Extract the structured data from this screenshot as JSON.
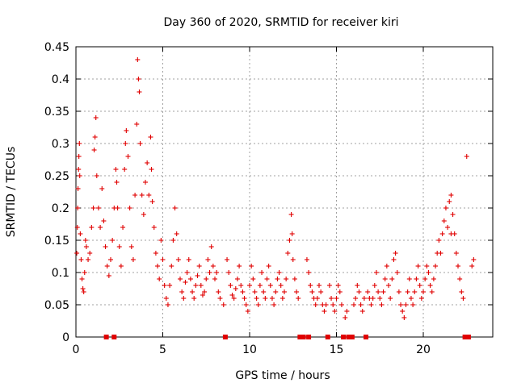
{
  "chart_data": {
    "type": "scatter",
    "title": "Day 360 of 2020, SRMTID for receiver kiri",
    "xlabel": "GPS time / hours",
    "ylabel": "SRMTID / TECUs",
    "xlim": [
      0,
      24
    ],
    "ylim": [
      0,
      0.45
    ],
    "x_ticks": [
      0,
      5,
      10,
      15,
      20
    ],
    "x_tick_labels": [
      "0",
      "5",
      "10",
      "15",
      "20"
    ],
    "y_ticks": [
      0,
      0.05,
      0.1,
      0.15,
      0.2,
      0.25,
      0.3,
      0.35,
      0.4,
      0.45
    ],
    "y_tick_labels": [
      "0",
      "0.05",
      "0.1",
      "0.15",
      "0.2",
      "0.25",
      "0.3",
      "0.35",
      "0.4",
      "0.45"
    ],
    "grid": true,
    "marker": "+",
    "color": "#e00000",
    "zero_markers_x": [
      1.75,
      2.2,
      8.6,
      12.9,
      13.1,
      13.4,
      14.5,
      15.4,
      15.7,
      15.9,
      16.7,
      22.4,
      22.6
    ],
    "series": [
      {
        "name": "SRMTID",
        "points": [
          [
            0.05,
            0.13
          ],
          [
            0.08,
            0.17
          ],
          [
            0.1,
            0.2
          ],
          [
            0.12,
            0.23
          ],
          [
            0.15,
            0.26
          ],
          [
            0.17,
            0.28
          ],
          [
            0.2,
            0.3
          ],
          [
            0.22,
            0.25
          ],
          [
            0.25,
            0.16
          ],
          [
            0.3,
            0.12
          ],
          [
            0.35,
            0.09
          ],
          [
            0.4,
            0.075
          ],
          [
            0.45,
            0.07
          ],
          [
            0.5,
            0.1
          ],
          [
            0.55,
            0.15
          ],
          [
            0.6,
            0.14
          ],
          [
            0.7,
            0.12
          ],
          [
            0.8,
            0.13
          ],
          [
            0.9,
            0.17
          ],
          [
            1.0,
            0.2
          ],
          [
            1.05,
            0.29
          ],
          [
            1.1,
            0.31
          ],
          [
            1.15,
            0.34
          ],
          [
            1.2,
            0.25
          ],
          [
            1.3,
            0.2
          ],
          [
            1.4,
            0.17
          ],
          [
            1.5,
            0.23
          ],
          [
            1.6,
            0.18
          ],
          [
            1.7,
            0.14
          ],
          [
            1.8,
            0.11
          ],
          [
            1.9,
            0.095
          ],
          [
            2.0,
            0.12
          ],
          [
            2.1,
            0.15
          ],
          [
            2.2,
            0.2
          ],
          [
            2.3,
            0.26
          ],
          [
            2.35,
            0.24
          ],
          [
            2.4,
            0.2
          ],
          [
            2.5,
            0.14
          ],
          [
            2.6,
            0.11
          ],
          [
            2.7,
            0.17
          ],
          [
            2.8,
            0.26
          ],
          [
            2.85,
            0.3
          ],
          [
            2.9,
            0.32
          ],
          [
            3.0,
            0.28
          ],
          [
            3.1,
            0.2
          ],
          [
            3.2,
            0.14
          ],
          [
            3.3,
            0.12
          ],
          [
            3.4,
            0.22
          ],
          [
            3.5,
            0.33
          ],
          [
            3.55,
            0.43
          ],
          [
            3.6,
            0.4
          ],
          [
            3.65,
            0.38
          ],
          [
            3.7,
            0.3
          ],
          [
            3.8,
            0.22
          ],
          [
            3.9,
            0.19
          ],
          [
            4.0,
            0.24
          ],
          [
            4.1,
            0.27
          ],
          [
            4.2,
            0.22
          ],
          [
            4.3,
            0.31
          ],
          [
            4.35,
            0.26
          ],
          [
            4.4,
            0.21
          ],
          [
            4.5,
            0.17
          ],
          [
            4.6,
            0.13
          ],
          [
            4.7,
            0.11
          ],
          [
            4.8,
            0.09
          ],
          [
            4.9,
            0.15
          ],
          [
            5.0,
            0.12
          ],
          [
            5.1,
            0.08
          ],
          [
            5.2,
            0.06
          ],
          [
            5.3,
            0.05
          ],
          [
            5.4,
            0.08
          ],
          [
            5.5,
            0.11
          ],
          [
            5.6,
            0.15
          ],
          [
            5.7,
            0.2
          ],
          [
            5.8,
            0.16
          ],
          [
            5.9,
            0.12
          ],
          [
            6.0,
            0.09
          ],
          [
            6.1,
            0.07
          ],
          [
            6.2,
            0.06
          ],
          [
            6.3,
            0.085
          ],
          [
            6.4,
            0.1
          ],
          [
            6.5,
            0.12
          ],
          [
            6.6,
            0.09
          ],
          [
            6.7,
            0.07
          ],
          [
            6.8,
            0.06
          ],
          [
            6.9,
            0.08
          ],
          [
            7.0,
            0.095
          ],
          [
            7.1,
            0.11
          ],
          [
            7.2,
            0.08
          ],
          [
            7.3,
            0.065
          ],
          [
            7.4,
            0.07
          ],
          [
            7.5,
            0.09
          ],
          [
            7.6,
            0.12
          ],
          [
            7.7,
            0.1
          ],
          [
            7.8,
            0.14
          ],
          [
            7.9,
            0.11
          ],
          [
            8.0,
            0.09
          ],
          [
            8.1,
            0.1
          ],
          [
            8.2,
            0.07
          ],
          [
            8.3,
            0.06
          ],
          [
            8.5,
            0.05
          ],
          [
            8.7,
            0.12
          ],
          [
            8.8,
            0.1
          ],
          [
            8.9,
            0.08
          ],
          [
            9.0,
            0.065
          ],
          [
            9.1,
            0.06
          ],
          [
            9.2,
            0.075
          ],
          [
            9.3,
            0.09
          ],
          [
            9.4,
            0.11
          ],
          [
            9.5,
            0.08
          ],
          [
            9.6,
            0.07
          ],
          [
            9.7,
            0.06
          ],
          [
            9.8,
            0.05
          ],
          [
            9.9,
            0.04
          ],
          [
            10.0,
            0.08
          ],
          [
            10.1,
            0.11
          ],
          [
            10.2,
            0.09
          ],
          [
            10.3,
            0.07
          ],
          [
            10.4,
            0.06
          ],
          [
            10.5,
            0.05
          ],
          [
            10.6,
            0.08
          ],
          [
            10.7,
            0.1
          ],
          [
            10.8,
            0.07
          ],
          [
            10.9,
            0.06
          ],
          [
            11.0,
            0.09
          ],
          [
            11.1,
            0.11
          ],
          [
            11.2,
            0.08
          ],
          [
            11.3,
            0.06
          ],
          [
            11.4,
            0.05
          ],
          [
            11.5,
            0.07
          ],
          [
            11.6,
            0.09
          ],
          [
            11.7,
            0.1
          ],
          [
            11.8,
            0.08
          ],
          [
            11.9,
            0.06
          ],
          [
            12.0,
            0.07
          ],
          [
            12.1,
            0.09
          ],
          [
            12.2,
            0.13
          ],
          [
            12.3,
            0.15
          ],
          [
            12.4,
            0.19
          ],
          [
            12.45,
            0.16
          ],
          [
            12.5,
            0.12
          ],
          [
            12.6,
            0.09
          ],
          [
            12.7,
            0.07
          ],
          [
            12.8,
            0.06
          ],
          [
            13.3,
            0.12
          ],
          [
            13.4,
            0.1
          ],
          [
            13.5,
            0.08
          ],
          [
            13.6,
            0.07
          ],
          [
            13.7,
            0.06
          ],
          [
            13.8,
            0.05
          ],
          [
            13.9,
            0.06
          ],
          [
            14.0,
            0.08
          ],
          [
            14.1,
            0.07
          ],
          [
            14.2,
            0.05
          ],
          [
            14.3,
            0.04
          ],
          [
            14.4,
            0.05
          ],
          [
            14.6,
            0.08
          ],
          [
            14.7,
            0.06
          ],
          [
            14.8,
            0.05
          ],
          [
            14.9,
            0.04
          ],
          [
            15.0,
            0.06
          ],
          [
            15.1,
            0.08
          ],
          [
            15.2,
            0.07
          ],
          [
            15.3,
            0.05
          ],
          [
            15.5,
            0.03
          ],
          [
            15.6,
            0.04
          ],
          [
            16.0,
            0.05
          ],
          [
            16.1,
            0.06
          ],
          [
            16.2,
            0.08
          ],
          [
            16.3,
            0.07
          ],
          [
            16.4,
            0.05
          ],
          [
            16.5,
            0.04
          ],
          [
            16.6,
            0.06
          ],
          [
            16.8,
            0.07
          ],
          [
            16.9,
            0.06
          ],
          [
            17.0,
            0.05
          ],
          [
            17.1,
            0.06
          ],
          [
            17.2,
            0.08
          ],
          [
            17.3,
            0.1
          ],
          [
            17.4,
            0.07
          ],
          [
            17.5,
            0.06
          ],
          [
            17.6,
            0.05
          ],
          [
            17.7,
            0.07
          ],
          [
            17.8,
            0.09
          ],
          [
            17.9,
            0.11
          ],
          [
            18.0,
            0.08
          ],
          [
            18.1,
            0.06
          ],
          [
            18.2,
            0.09
          ],
          [
            18.3,
            0.12
          ],
          [
            18.4,
            0.13
          ],
          [
            18.5,
            0.1
          ],
          [
            18.6,
            0.07
          ],
          [
            18.7,
            0.05
          ],
          [
            18.8,
            0.04
          ],
          [
            18.9,
            0.03
          ],
          [
            19.0,
            0.05
          ],
          [
            19.1,
            0.07
          ],
          [
            19.2,
            0.09
          ],
          [
            19.3,
            0.06
          ],
          [
            19.4,
            0.05
          ],
          [
            19.5,
            0.07
          ],
          [
            19.6,
            0.09
          ],
          [
            19.7,
            0.11
          ],
          [
            19.8,
            0.08
          ],
          [
            19.9,
            0.06
          ],
          [
            20.0,
            0.07
          ],
          [
            20.1,
            0.09
          ],
          [
            20.2,
            0.11
          ],
          [
            20.3,
            0.1
          ],
          [
            20.4,
            0.08
          ],
          [
            20.5,
            0.07
          ],
          [
            20.6,
            0.09
          ],
          [
            20.7,
            0.11
          ],
          [
            20.8,
            0.13
          ],
          [
            20.9,
            0.15
          ],
          [
            21.0,
            0.13
          ],
          [
            21.1,
            0.16
          ],
          [
            21.2,
            0.18
          ],
          [
            21.3,
            0.2
          ],
          [
            21.4,
            0.17
          ],
          [
            21.5,
            0.21
          ],
          [
            21.6,
            0.22
          ],
          [
            21.7,
            0.19
          ],
          [
            21.8,
            0.16
          ],
          [
            21.9,
            0.13
          ],
          [
            22.0,
            0.11
          ],
          [
            22.1,
            0.09
          ],
          [
            22.2,
            0.07
          ],
          [
            22.3,
            0.06
          ],
          [
            22.8,
            0.11
          ],
          [
            22.9,
            0.12
          ],
          [
            21.6,
            0.16
          ],
          [
            22.5,
            0.28
          ]
        ]
      }
    ]
  }
}
